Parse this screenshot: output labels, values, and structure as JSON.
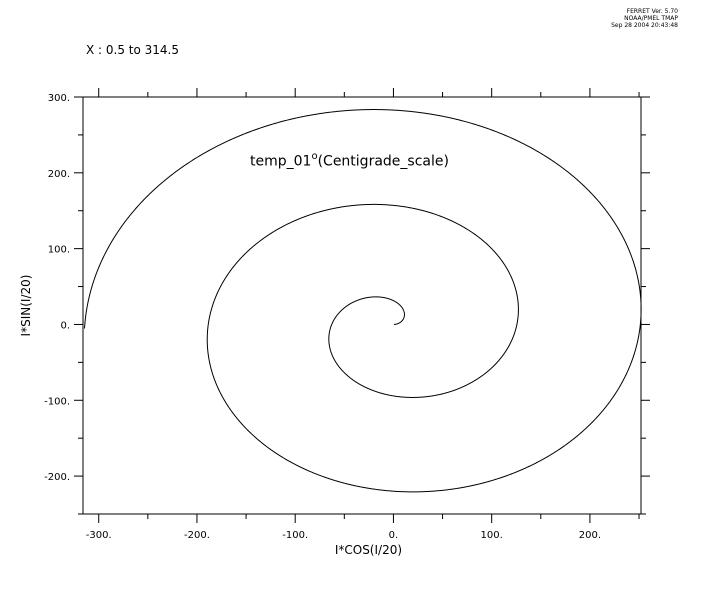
{
  "header": {
    "line1": "FERRET Ver. 5.70",
    "line2": "NOAA/PMEL TMAP",
    "line3": "Sep 28 2004 20:43:48"
  },
  "x_range": "X : 0.5 to 314.5",
  "chart_data": {
    "type": "line",
    "title": "temp_01°(Centigrade_scale)",
    "title_main": "temp_01",
    "title_degree": "o",
    "title_rest": "(Centigrade_scale)",
    "xlabel": "I*COS(I/20)",
    "ylabel": "I*SIN(I/20)",
    "xlim": [
      -316,
      252
    ],
    "ylim": [
      -250,
      300
    ],
    "xticks": [
      -300,
      -200,
      -100,
      0,
      100,
      200
    ],
    "xtick_labels": [
      "-300.",
      "-200.",
      "-100.",
      "0.",
      "100.",
      "200."
    ],
    "yticks": [
      -200,
      -100,
      0,
      100,
      200,
      300
    ],
    "ytick_labels": [
      "-200.",
      "-100.",
      "0.",
      "100.",
      "200.",
      "300."
    ],
    "series": [
      {
        "formula_x": "I*COS(I/20)",
        "formula_y": "I*SIN(I/20)",
        "i_start": 0.5,
        "i_end": 314.5
      }
    ],
    "line_color": "#000000",
    "grid": false
  }
}
